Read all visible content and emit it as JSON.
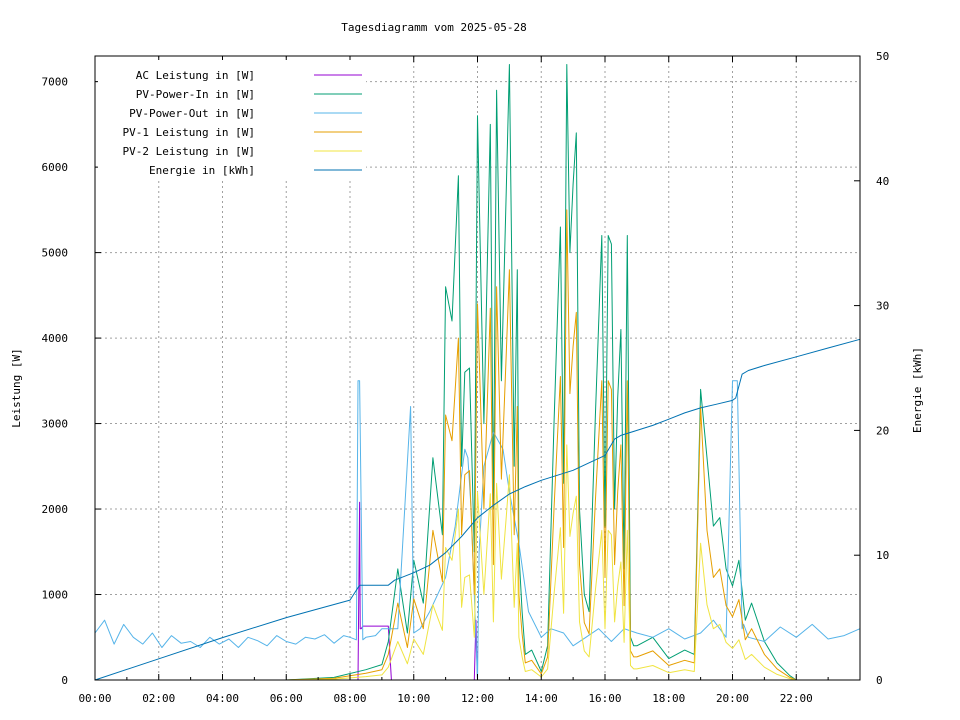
{
  "chart_data": {
    "type": "line",
    "title": "Tagesdiagramm vom 2025-05-28",
    "ylabel": "Leistung [W]",
    "y2label": "Energie [kWh]",
    "x_unit": "hours",
    "xlim": [
      0,
      24
    ],
    "ylim": [
      0,
      7300
    ],
    "y2lim": [
      0,
      50
    ],
    "x_ticks": [
      "00:00",
      "02:00",
      "04:00",
      "06:00",
      "08:00",
      "10:00",
      "12:00",
      "14:00",
      "16:00",
      "18:00",
      "20:00",
      "22:00"
    ],
    "y_ticks": [
      "0",
      "1000",
      "2000",
      "3000",
      "4000",
      "5000",
      "6000",
      "7000"
    ],
    "y2_ticks": [
      "0",
      "10",
      "20",
      "30",
      "40",
      "50"
    ],
    "grid": true,
    "legend_position": "top-left",
    "series": [
      {
        "name": "AC Leistung in [W]",
        "color": "#9400d3",
        "axis": "y",
        "x": [
          0,
          8.25,
          8.3,
          8.32,
          8.35,
          8.4,
          9.2,
          9.3,
          11.9,
          11.95,
          12.0,
          24
        ],
        "y": [
          0,
          0,
          2080,
          600,
          600,
          630,
          630,
          0,
          0,
          700,
          0,
          0
        ]
      },
      {
        "name": "PV-Power-In in [W]",
        "color": "#009e73",
        "axis": "y",
        "x": [
          6.0,
          7.5,
          8.5,
          9.0,
          9.2,
          9.5,
          9.8,
          10.0,
          10.3,
          10.6,
          10.9,
          11.0,
          11.2,
          11.4,
          11.5,
          11.6,
          11.75,
          11.9,
          12.0,
          12.2,
          12.4,
          12.5,
          12.6,
          12.75,
          12.9,
          13.0,
          13.15,
          13.25,
          13.3,
          13.4,
          13.5,
          13.7,
          14.0,
          14.2,
          14.4,
          14.6,
          14.7,
          14.8,
          14.9,
          15.0,
          15.1,
          15.2,
          15.35,
          15.5,
          15.7,
          15.9,
          16.0,
          16.1,
          16.2,
          16.3,
          16.4,
          16.5,
          16.6,
          16.7,
          16.8,
          16.9,
          17.0,
          17.5,
          18.0,
          18.5,
          18.8,
          19.0,
          19.2,
          19.4,
          19.6,
          19.8,
          20.0,
          20.2,
          20.4,
          20.6,
          21.0,
          21.4,
          21.8,
          22.0
        ],
        "y": [
          0,
          30,
          120,
          180,
          450,
          1300,
          550,
          1400,
          900,
          2600,
          1700,
          4600,
          4200,
          5900,
          2500,
          3600,
          3650,
          1500,
          6600,
          3000,
          6500,
          2000,
          6900,
          3500,
          5700,
          7200,
          2500,
          4800,
          1500,
          800,
          300,
          350,
          100,
          400,
          3000,
          5300,
          2300,
          7200,
          5000,
          5800,
          6400,
          2000,
          1000,
          800,
          3100,
          5200,
          1800,
          5200,
          5100,
          2000,
          3300,
          4100,
          1300,
          5200,
          500,
          400,
          400,
          500,
          250,
          350,
          300,
          3400,
          2600,
          1800,
          1900,
          1300,
          1100,
          1400,
          700,
          900,
          450,
          200,
          50,
          0
        ]
      },
      {
        "name": "PV-Power-Out in [W]",
        "color": "#56b4e9",
        "axis": "y",
        "x": [
          0,
          0.3,
          0.6,
          0.9,
          1.2,
          1.5,
          1.8,
          2.1,
          2.4,
          2.7,
          3.0,
          3.3,
          3.6,
          3.9,
          4.2,
          4.5,
          4.8,
          5.1,
          5.4,
          5.7,
          6.0,
          6.3,
          6.6,
          6.9,
          7.2,
          7.5,
          7.8,
          8.0,
          8.2,
          8.25,
          8.3,
          8.4,
          8.5,
          8.8,
          9.0,
          9.5,
          9.9,
          10.0,
          10.2,
          10.5,
          11.0,
          11.3,
          11.5,
          11.6,
          11.7,
          11.8,
          12.0,
          12.05,
          12.2,
          12.5,
          12.8,
          13.0,
          13.3,
          13.6,
          14.0,
          14.3,
          14.7,
          15.0,
          15.4,
          15.8,
          16.2,
          16.6,
          17.0,
          17.5,
          18.0,
          18.5,
          19.0,
          19.4,
          19.8,
          20.0,
          20.1,
          20.15,
          20.3,
          20.35,
          20.5,
          21.0,
          21.5,
          22.0,
          22.5,
          23.0,
          23.5,
          24.0
        ],
        "y": [
          550,
          700,
          420,
          650,
          500,
          420,
          550,
          380,
          520,
          430,
          450,
          380,
          500,
          420,
          480,
          380,
          500,
          460,
          400,
          520,
          450,
          420,
          500,
          480,
          530,
          430,
          520,
          500,
          470,
          3500,
          3500,
          470,
          500,
          520,
          600,
          600,
          3200,
          550,
          600,
          800,
          1200,
          1800,
          2400,
          2700,
          2600,
          2000,
          0,
          1500,
          2500,
          2900,
          2700,
          2200,
          1600,
          800,
          500,
          600,
          550,
          400,
          500,
          600,
          450,
          600,
          550,
          500,
          600,
          480,
          550,
          700,
          500,
          3500,
          3500,
          3500,
          600,
          650,
          500,
          450,
          620,
          500,
          650,
          480,
          520,
          600
        ]
      },
      {
        "name": "PV-1 Leistung in [W]",
        "color": "#e69f00",
        "axis": "y",
        "x": [
          6.0,
          7.5,
          8.5,
          9.0,
          9.2,
          9.5,
          9.8,
          10.0,
          10.3,
          10.6,
          10.9,
          11.0,
          11.2,
          11.4,
          11.5,
          11.6,
          11.75,
          11.9,
          12.0,
          12.2,
          12.4,
          12.5,
          12.6,
          12.75,
          12.9,
          13.0,
          13.15,
          13.25,
          13.3,
          13.4,
          13.5,
          13.7,
          14.0,
          14.2,
          14.4,
          14.6,
          14.7,
          14.8,
          14.9,
          15.0,
          15.1,
          15.2,
          15.35,
          15.5,
          15.7,
          15.9,
          16.0,
          16.1,
          16.2,
          16.3,
          16.4,
          16.5,
          16.6,
          16.7,
          16.8,
          16.9,
          17.0,
          17.5,
          18.0,
          18.5,
          18.8,
          19.0,
          19.2,
          19.4,
          19.6,
          19.8,
          20.0,
          20.2,
          20.4,
          20.6,
          21.0,
          21.4,
          21.8,
          22.0
        ],
        "y": [
          0,
          20,
          80,
          120,
          300,
          900,
          380,
          950,
          600,
          1750,
          1150,
          3100,
          2800,
          4000,
          1700,
          2400,
          2450,
          1000,
          4400,
          2000,
          4350,
          1350,
          4600,
          2350,
          3800,
          4800,
          1700,
          3200,
          1000,
          540,
          200,
          230,
          70,
          270,
          2000,
          3550,
          1550,
          5500,
          3350,
          3900,
          4300,
          1350,
          670,
          540,
          2100,
          3500,
          1200,
          3500,
          3400,
          1350,
          2200,
          2750,
          870,
          3500,
          340,
          270,
          270,
          340,
          170,
          230,
          200,
          3200,
          1750,
          1200,
          1300,
          870,
          740,
          940,
          470,
          600,
          300,
          130,
          30,
          0
        ]
      },
      {
        "name": "PV-2 Leistung in [W]",
        "color": "#f0e442",
        "axis": "y",
        "x": [
          6.0,
          7.5,
          8.5,
          9.0,
          9.2,
          9.5,
          9.8,
          10.0,
          10.3,
          10.6,
          10.9,
          11.0,
          11.2,
          11.4,
          11.5,
          11.6,
          11.75,
          11.9,
          12.0,
          12.2,
          12.4,
          12.5,
          12.6,
          12.75,
          12.9,
          13.0,
          13.15,
          13.25,
          13.3,
          13.4,
          13.5,
          13.7,
          14.0,
          14.2,
          14.4,
          14.6,
          14.7,
          14.8,
          14.9,
          15.0,
          15.1,
          15.2,
          15.35,
          15.5,
          15.7,
          15.9,
          16.0,
          16.1,
          16.2,
          16.3,
          16.4,
          16.5,
          16.6,
          16.7,
          16.8,
          16.9,
          17.0,
          17.5,
          18.0,
          18.5,
          18.8,
          19.0,
          19.2,
          19.4,
          19.6,
          19.8,
          20.0,
          20.2,
          20.4,
          20.6,
          21.0,
          21.4,
          21.8,
          22.0
        ],
        "y": [
          0,
          10,
          40,
          60,
          150,
          450,
          190,
          480,
          300,
          880,
          580,
          1550,
          1400,
          2000,
          850,
          1200,
          1230,
          500,
          2200,
          1000,
          2180,
          680,
          2300,
          1180,
          1900,
          2400,
          850,
          1600,
          500,
          270,
          100,
          120,
          35,
          130,
          1000,
          1780,
          780,
          2750,
          1680,
          1950,
          2150,
          680,
          340,
          270,
          1050,
          1750,
          600,
          1750,
          1700,
          680,
          1100,
          1380,
          440,
          1750,
          170,
          130,
          130,
          170,
          85,
          120,
          100,
          1600,
          880,
          600,
          650,
          440,
          370,
          470,
          240,
          300,
          150,
          65,
          15,
          0
        ]
      },
      {
        "name": "Energie in [kWh]",
        "color": "#0072b2",
        "axis": "y2",
        "x": [
          0,
          2,
          4,
          6,
          7,
          8,
          8.3,
          9.2,
          9.4,
          10,
          10.5,
          11,
          11.5,
          12,
          12.5,
          13,
          13.5,
          14,
          14.5,
          15,
          15.5,
          16,
          16.3,
          16.5,
          17,
          17.5,
          18,
          18.5,
          19,
          19.5,
          20,
          20.1,
          20.3,
          20.5,
          21,
          22,
          23,
          24
        ],
        "y": [
          0,
          1.7,
          3.4,
          5.0,
          5.7,
          6.4,
          7.6,
          7.6,
          8.0,
          8.6,
          9.2,
          10.2,
          11.5,
          13.0,
          14.0,
          14.9,
          15.5,
          16.0,
          16.4,
          16.8,
          17.4,
          18.0,
          19.3,
          19.6,
          20.0,
          20.4,
          20.9,
          21.4,
          21.8,
          22.1,
          22.4,
          22.6,
          24.5,
          24.8,
          25.2,
          25.9,
          26.6,
          27.3
        ]
      }
    ]
  }
}
